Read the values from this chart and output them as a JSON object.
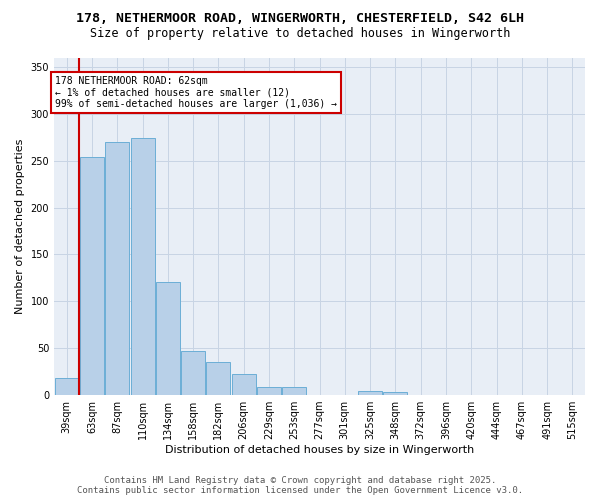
{
  "title_line1": "178, NETHERMOOR ROAD, WINGERWORTH, CHESTERFIELD, S42 6LH",
  "title_line2": "Size of property relative to detached houses in Wingerworth",
  "xlabel": "Distribution of detached houses by size in Wingerworth",
  "ylabel": "Number of detached properties",
  "bar_color": "#b8d0e8",
  "bar_edge_color": "#6baed6",
  "grid_color": "#c8d4e4",
  "background_color": "#e8eef6",
  "annotation_box_color": "#cc0000",
  "annotation_text": "178 NETHERMOOR ROAD: 62sqm\n← 1% of detached houses are smaller (12)\n99% of semi-detached houses are larger (1,036) →",
  "vline_color": "#cc0000",
  "vline_bin": 1,
  "categories": [
    "39sqm",
    "63sqm",
    "87sqm",
    "110sqm",
    "134sqm",
    "158sqm",
    "182sqm",
    "206sqm",
    "229sqm",
    "253sqm",
    "277sqm",
    "301sqm",
    "325sqm",
    "348sqm",
    "372sqm",
    "396sqm",
    "420sqm",
    "444sqm",
    "467sqm",
    "491sqm",
    "515sqm"
  ],
  "values": [
    18,
    254,
    270,
    274,
    121,
    47,
    35,
    23,
    9,
    9,
    0,
    0,
    4,
    3,
    0,
    0,
    0,
    0,
    0,
    0,
    0
  ],
  "ylim": [
    0,
    360
  ],
  "yticks": [
    0,
    50,
    100,
    150,
    200,
    250,
    300,
    350
  ],
  "footer_line1": "Contains HM Land Registry data © Crown copyright and database right 2025.",
  "footer_line2": "Contains public sector information licensed under the Open Government Licence v3.0.",
  "title_fontsize": 9.5,
  "subtitle_fontsize": 8.5,
  "axis_label_fontsize": 8,
  "tick_fontsize": 7,
  "footer_fontsize": 6.5,
  "n_bins": 21
}
